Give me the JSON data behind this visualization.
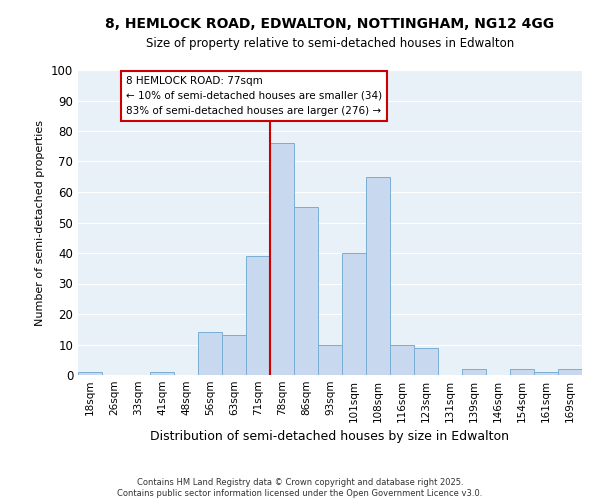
{
  "title_line1": "8, HEMLOCK ROAD, EDWALTON, NOTTINGHAM, NG12 4GG",
  "title_line2": "Size of property relative to semi-detached houses in Edwalton",
  "xlabel": "Distribution of semi-detached houses by size in Edwalton",
  "ylabel": "Number of semi-detached properties",
  "categories": [
    "18sqm",
    "26sqm",
    "33sqm",
    "41sqm",
    "48sqm",
    "56sqm",
    "63sqm",
    "71sqm",
    "78sqm",
    "86sqm",
    "93sqm",
    "101sqm",
    "108sqm",
    "116sqm",
    "123sqm",
    "131sqm",
    "139sqm",
    "146sqm",
    "154sqm",
    "161sqm",
    "169sqm"
  ],
  "values": [
    1,
    0,
    0,
    1,
    0,
    14,
    13,
    39,
    76,
    55,
    10,
    40,
    65,
    10,
    9,
    0,
    2,
    0,
    2,
    1,
    2
  ],
  "bar_color": "#c8d8ee",
  "bar_edge_color": "#7aaed4",
  "property_index": 8,
  "vline_color": "#cc0000",
  "annotation_title": "8 HEMLOCK ROAD: 77sqm",
  "annotation_line2": "← 10% of semi-detached houses are smaller (34)",
  "annotation_line3": "83% of semi-detached houses are larger (276) →",
  "annotation_box_edgecolor": "#cc0000",
  "ylim": [
    0,
    100
  ],
  "yticks": [
    0,
    10,
    20,
    30,
    40,
    50,
    60,
    70,
    80,
    90,
    100
  ],
  "bg_color": "#e8f0f8",
  "grid_color": "#ffffff",
  "footer_line1": "Contains HM Land Registry data © Crown copyright and database right 2025.",
  "footer_line2": "Contains public sector information licensed under the Open Government Licence v3.0."
}
